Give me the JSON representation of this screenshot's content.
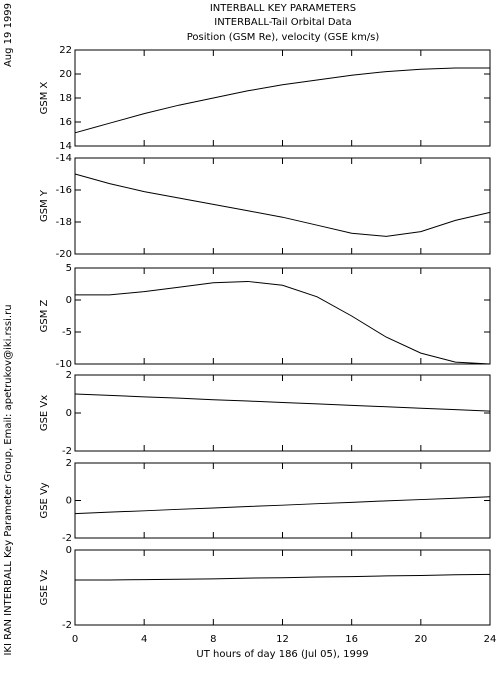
{
  "header": {
    "title": "INTERBALL KEY PARAMETERS",
    "subtitle": "INTERBALL-Tail Orbital Data",
    "subtitle2": "Position (GSM Re), velocity (GSE km/s)",
    "date": "Aug 19 1999",
    "credit": "IKI RAN INTERBALL Key Parameter Group, Email: apetrukov@iki.rssi.ru"
  },
  "chart_data": [
    {
      "type": "line",
      "ylabel": "GSM X",
      "xlim": [
        0,
        24
      ],
      "ylim": [
        14,
        22
      ],
      "yticks": [
        14,
        16,
        18,
        20,
        22
      ],
      "color": "#000000",
      "x": [
        0,
        2,
        4,
        6,
        8,
        10,
        12,
        14,
        16,
        18,
        20,
        22,
        24
      ],
      "values": [
        15.1,
        15.9,
        16.7,
        17.4,
        18.0,
        18.6,
        19.1,
        19.5,
        19.9,
        20.2,
        20.4,
        20.5,
        20.5
      ]
    },
    {
      "type": "line",
      "ylabel": "GSM Y",
      "xlim": [
        0,
        24
      ],
      "ylim": [
        -20,
        -14
      ],
      "yticks": [
        -20,
        -18,
        -16,
        -14
      ],
      "color": "#000000",
      "x": [
        0,
        2,
        4,
        6,
        8,
        10,
        12,
        14,
        16,
        18,
        20,
        22,
        24
      ],
      "values": [
        -15.0,
        -15.6,
        -16.1,
        -16.5,
        -16.9,
        -17.3,
        -17.7,
        -18.2,
        -18.7,
        -18.9,
        -18.6,
        -17.9,
        -17.4
      ]
    },
    {
      "type": "line",
      "ylabel": "GSM Z",
      "xlim": [
        0,
        24
      ],
      "ylim": [
        -10,
        5
      ],
      "yticks": [
        -10,
        -5,
        0,
        5
      ],
      "color": "#000000",
      "x": [
        0,
        2,
        4,
        6,
        8,
        10,
        12,
        14,
        16,
        18,
        20,
        22,
        24
      ],
      "values": [
        0.8,
        0.8,
        1.3,
        2.0,
        2.7,
        2.9,
        2.3,
        0.5,
        -2.5,
        -5.8,
        -8.3,
        -9.7,
        -10.0
      ]
    },
    {
      "type": "line",
      "ylabel": "GSE Vx",
      "xlim": [
        0,
        24
      ],
      "ylim": [
        -2,
        2
      ],
      "yticks": [
        -2,
        0,
        2
      ],
      "color": "#000000",
      "x": [
        0,
        2,
        4,
        6,
        8,
        10,
        12,
        14,
        16,
        18,
        20,
        22,
        24
      ],
      "values": [
        1.0,
        0.93,
        0.85,
        0.78,
        0.7,
        0.63,
        0.55,
        0.48,
        0.4,
        0.33,
        0.25,
        0.18,
        0.1
      ]
    },
    {
      "type": "line",
      "ylabel": "GSE Vy",
      "xlim": [
        0,
        24
      ],
      "ylim": [
        -2,
        2
      ],
      "yticks": [
        -2,
        0,
        2
      ],
      "color": "#000000",
      "x": [
        0,
        2,
        4,
        6,
        8,
        10,
        12,
        14,
        16,
        18,
        20,
        22,
        24
      ],
      "values": [
        -0.7,
        -0.62,
        -0.55,
        -0.47,
        -0.4,
        -0.32,
        -0.25,
        -0.17,
        -0.1,
        -0.02,
        0.05,
        0.12,
        0.2
      ]
    },
    {
      "type": "line",
      "ylabel": "GSE Vz",
      "xlabel": "UT hours of day 186 (Jul 05), 1999",
      "xlim": [
        0,
        24
      ],
      "ylim": [
        -2,
        0
      ],
      "yticks": [
        -2,
        0
      ],
      "xticks": [
        0,
        4,
        8,
        12,
        16,
        20,
        24
      ],
      "color": "#000000",
      "x": [
        0,
        2,
        4,
        6,
        8,
        10,
        12,
        14,
        16,
        18,
        20,
        22,
        24
      ],
      "values": [
        -0.8,
        -0.8,
        -0.79,
        -0.78,
        -0.77,
        -0.75,
        -0.74,
        -0.72,
        -0.71,
        -0.69,
        -0.68,
        -0.66,
        -0.65
      ]
    }
  ]
}
